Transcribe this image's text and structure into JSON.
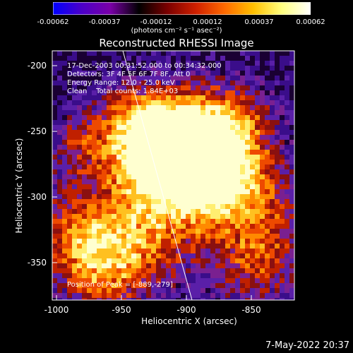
{
  "colorbar": {
    "ticks": [
      "-0.00062",
      "-0.00037",
      "-0.00012",
      "0.00012",
      "0.00037",
      "0.00062"
    ],
    "units": "(photons cm⁻² s⁻¹ asec⁻²)",
    "colors": [
      "#0000ff",
      "#4b00c8",
      "#7a00a8",
      "#000000",
      "#7a0000",
      "#d02000",
      "#ff6a00",
      "#ffc000",
      "#ffff80",
      "#ffffff"
    ]
  },
  "title": "Reconstructed RHESSI Image",
  "info": {
    "time": "17-Dec-2003 00:31:52.000 to 00:34:32.000",
    "detectors": "Detectors: 3F 4F 5F 6F 7F 8F, Att 0",
    "energy": "Energy Range: 12.0 - 25.0 keV",
    "clean": "Clean    Total counts: 1.84E+03",
    "peak": "Position of Peak = [-889,-279]"
  },
  "axes": {
    "xlabel": "Heliocentric X (arcsec)",
    "ylabel": "Heliocentric Y (arcsec)",
    "xticks": [
      "-1000",
      "-950",
      "-900",
      "-850"
    ],
    "yticks": [
      "-200",
      "-250",
      "-300",
      "-350"
    ]
  },
  "datestamp": "7-May-2022 20:37"
}
